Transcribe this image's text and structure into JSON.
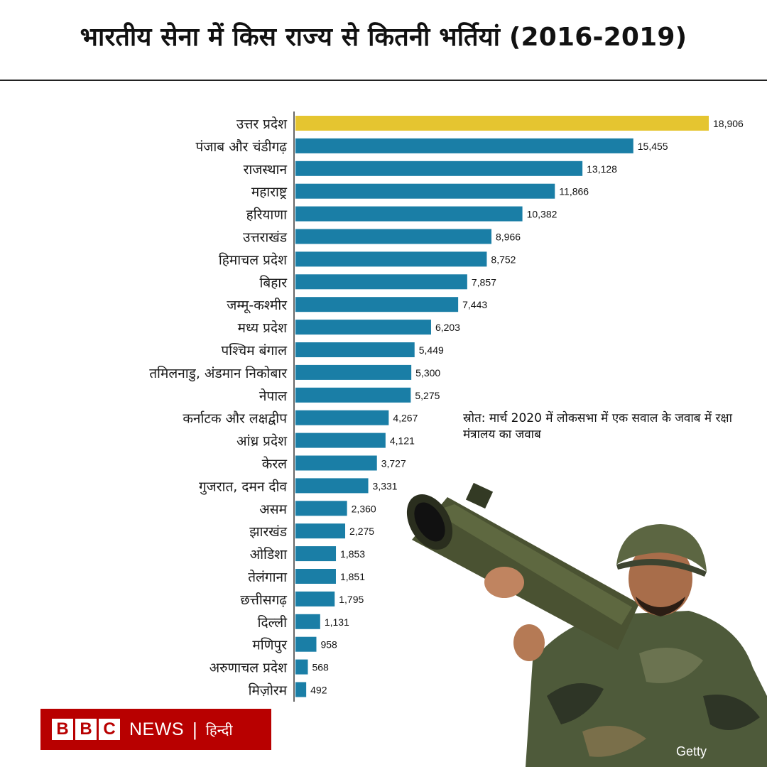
{
  "title": "भारतीय सेना में किस राज्य से कितनी भर्तियां (2016-2019)",
  "source_note": "स्रोत: मार्च 2020 में लोकसभा में एक सवाल के जवाब में रक्षा मंत्रालय का जवाब",
  "photo_credit": "Getty",
  "logo": {
    "letters": [
      "B",
      "B",
      "C"
    ],
    "news": "NEWS",
    "separator": "|",
    "language": "हिन्दी"
  },
  "colors": {
    "highlight": "#e5c530",
    "bar": "#1a7ea6",
    "logo_red": "#b80000"
  },
  "chart_data": {
    "type": "bar",
    "orientation": "horizontal",
    "title": "भारतीय सेना में किस राज्य से कितनी भर्तियां (2016-2019)",
    "xlim": [
      0,
      18906
    ],
    "grid": false,
    "highlighted_category": "उत्तर प्रदेश",
    "categories": [
      "उत्तर प्रदेश",
      "पंजाब और चंडीगढ़",
      "राजस्थान",
      "महाराष्ट्र",
      "हरियाणा",
      "उत्तराखंड",
      "हिमाचल प्रदेश",
      "बिहार",
      "जम्मू-कश्मीर",
      "मध्य प्रदेश",
      "पश्चिम बंगाल",
      "तमिलनाडु, अंडमान निकोबार",
      "नेपाल",
      "कर्नाटक और लक्षद्वीप",
      "आंध्र प्रदेश",
      "केरल",
      "गुजरात, दमन दीव",
      "असम",
      "झारखंड",
      "ओडिशा",
      "तेलंगाना",
      "छत्तीसगढ़",
      "दिल्ली",
      "मणिपुर",
      "अरुणाचल प्रदेश",
      "मिज़ोरम"
    ],
    "values": [
      18906,
      15455,
      13128,
      11866,
      10382,
      8966,
      8752,
      7857,
      7443,
      6203,
      5449,
      5300,
      5275,
      4267,
      4121,
      3727,
      3331,
      2360,
      2275,
      1853,
      1851,
      1795,
      1131,
      958,
      568,
      492
    ],
    "value_labels": [
      "18,906",
      "15,455",
      "13,128",
      "11,866",
      "10,382",
      "8,966",
      "8,752",
      "7,857",
      "7,443",
      "6,203",
      "5,449",
      "5,300",
      "5,275",
      "4,267",
      "4,121",
      "3,727",
      "3,331",
      "2,360",
      "2,275",
      "1,853",
      "1,851",
      "1,795",
      "1,131",
      "958",
      "568",
      "492"
    ]
  }
}
